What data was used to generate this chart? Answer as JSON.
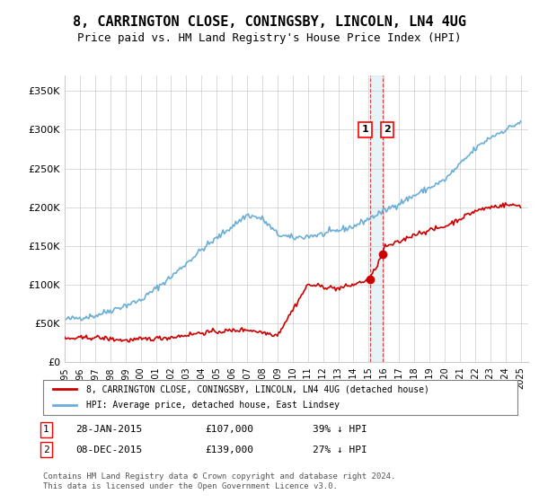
{
  "title": "8, CARRINGTON CLOSE, CONINGSBY, LINCOLN, LN4 4UG",
  "subtitle": "Price paid vs. HM Land Registry's House Price Index (HPI)",
  "title_fontsize": 11,
  "subtitle_fontsize": 9,
  "ylabel_ticks": [
    "£0",
    "£50K",
    "£100K",
    "£150K",
    "£200K",
    "£250K",
    "£300K",
    "£350K"
  ],
  "ytick_values": [
    0,
    50000,
    100000,
    150000,
    200000,
    250000,
    300000,
    350000
  ],
  "ylim": [
    0,
    370000
  ],
  "xlim_start": 1995.0,
  "xlim_end": 2025.5,
  "hpi_color": "#6baed6",
  "price_color": "#cc0000",
  "marker1_date": 2015.07,
  "marker2_date": 2015.92,
  "marker1_price": 107000,
  "marker2_price": 139000,
  "legend_label_price": "8, CARRINGTON CLOSE, CONINGSBY, LINCOLN, LN4 4UG (detached house)",
  "legend_label_hpi": "HPI: Average price, detached house, East Lindsey",
  "annotation1_label": "1",
  "annotation2_label": "2",
  "table_row1": [
    "1",
    "28-JAN-2015",
    "£107,000",
    "39% ↓ HPI"
  ],
  "table_row2": [
    "2",
    "08-DEC-2015",
    "£139,000",
    "27% ↓ HPI"
  ],
  "footnote": "Contains HM Land Registry data © Crown copyright and database right 2024.\nThis data is licensed under the Open Government Licence v3.0.",
  "background_color": "#ffffff",
  "grid_color": "#cccccc"
}
